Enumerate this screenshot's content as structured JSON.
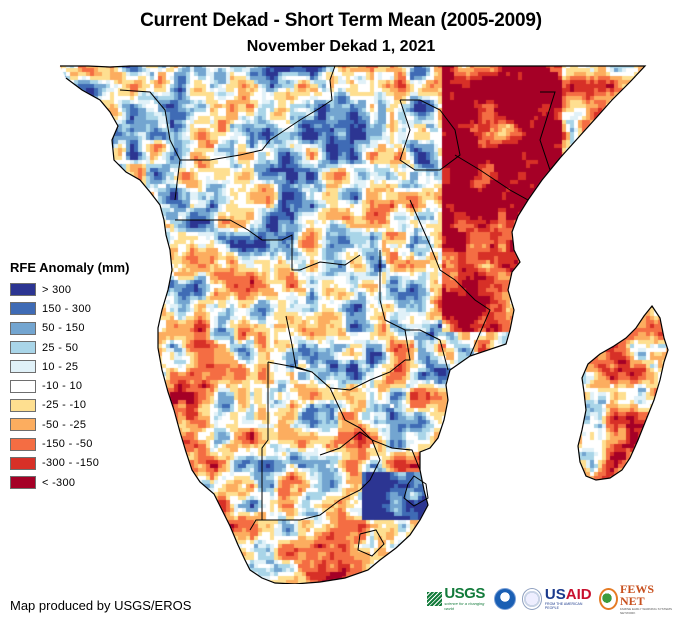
{
  "title": "Current Dekad - Short Term Mean (2005-2009)",
  "subtitle": "November Dekad 1, 2021",
  "legend": {
    "title": "RFE Anomaly (mm)",
    "items": [
      {
        "label": "> 300",
        "color": "#2c3592"
      },
      {
        "label": "150 - 300",
        "color": "#3f6bb5"
      },
      {
        "label": "50 - 150",
        "color": "#73a5d0"
      },
      {
        "label": "25 - 50",
        "color": "#a9d5e8"
      },
      {
        "label": "10 - 25",
        "color": "#e0f1f8"
      },
      {
        "label": "-10 - 10",
        "color": "#ffffff"
      },
      {
        "label": "-25 - -10",
        "color": "#fedf90"
      },
      {
        "label": "-50 - -25",
        "color": "#fcad5f"
      },
      {
        "label": "-150 - -50",
        "color": "#f46d43"
      },
      {
        "label": "-300 - -150",
        "color": "#d73027"
      },
      {
        "label": "< -300",
        "color": "#a50026"
      }
    ]
  },
  "credit": "Map produced by USGS/EROS",
  "logos": {
    "usgs": {
      "name": "USGS",
      "tagline": "science for a changing world"
    },
    "noaa": {
      "name": "NOAA"
    },
    "usaid": {
      "us": "US",
      "aid": "AID",
      "tagline": "FROM THE AMERICAN PEOPLE"
    },
    "fewsnet": {
      "name": "FEWS NET",
      "tagline": "FAMINE EARLY WARNING SYSTEMS NETWORK"
    }
  },
  "map": {
    "region": "Southern and East Africa",
    "regions_summary": [
      {
        "area": "East Africa (Kenya, Somalia, Tanzania)",
        "anomaly": "below average (-150 to -10 mm)"
      },
      {
        "area": "Central Africa (Congo basin, DRC, Gabon)",
        "anomaly": "mixed, largely above average (10 to 300 mm) with below-average patches"
      },
      {
        "area": "Angola / Zambia",
        "anomaly": "mixed, patches of -150 to -50 mm and 50 to 300 mm"
      },
      {
        "area": "Namibia / Botswana / South Africa interior",
        "anomaly": "near average to slightly below (-25 to 10 mm)"
      },
      {
        "area": "Eastern South Africa / Eswatini",
        "anomaly": "above average (50 to >300 mm)"
      },
      {
        "area": "Madagascar",
        "anomaly": "mostly slightly below (-25 to -10 mm) with some above-average spots"
      }
    ]
  }
}
